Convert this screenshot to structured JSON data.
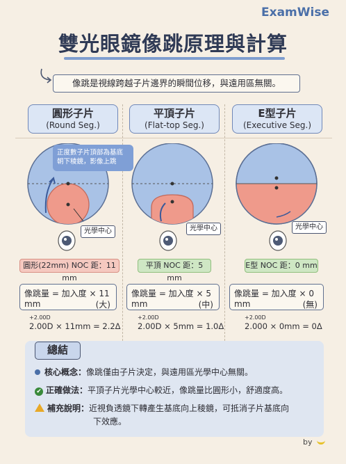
{
  "brand": "ExamWise",
  "title": "雙光眼鏡像跳原理與計算",
  "subtitle": "像跳是視線跨越子片邊界的瞬間位移，與遠用區無關。",
  "columns": [
    {
      "name": "圓形子片",
      "en": "(Round Seg.)",
      "callout": "正度數子片頂部為基底朝下稜鏡，影像上跳",
      "center_label": "光學中心",
      "tag": "圓形(22mm) NOC 距：11 mm",
      "formula": "像跳量 = 加入度 × 11 mm",
      "note": "(大)",
      "calc_sup": "+2.00D",
      "calc": "2.00D × 11mm = 2.2Δ"
    },
    {
      "name": "平頂子片",
      "en": "(Flat-top Seg.)",
      "center_label": "光學中心",
      "tag": "平頂 NOC 距：5 mm",
      "formula": "像跳量 = 加入度 × 5 mm",
      "note": "(中)",
      "calc_sup": "+2.00D",
      "calc": "2.00D × 5mm = 1.0Δ"
    },
    {
      "name": "E型子片",
      "en": "(Executive Seg.)",
      "center_label": "光學中心",
      "tag": "E型 NOC 距：0 mm",
      "formula": "像跳量 = 加入度 × 0 mm",
      "note": "(無)",
      "calc_sup": "+2.00D",
      "calc": "2.000 × 0mm = 0Δ"
    }
  ],
  "summary": {
    "title": "總結",
    "rows": [
      {
        "label": "核心概念：",
        "text": "像跳僅由子片決定，與遠用區光學中心無關。"
      },
      {
        "label": "正確做法：",
        "text": "平頂子片光學中心較近，像跳量比圓形小，舒適度高。"
      },
      {
        "label": "補充說明：",
        "text": "近視負透鏡下轉產生基底向上稜鏡，可抵消子片基底向",
        "text2": "下效應。"
      }
    ]
  },
  "footer": "by",
  "colors": {
    "distance": "#a9c2e6",
    "segment": "#ef9a8b",
    "accent": "#4a6fa8"
  }
}
